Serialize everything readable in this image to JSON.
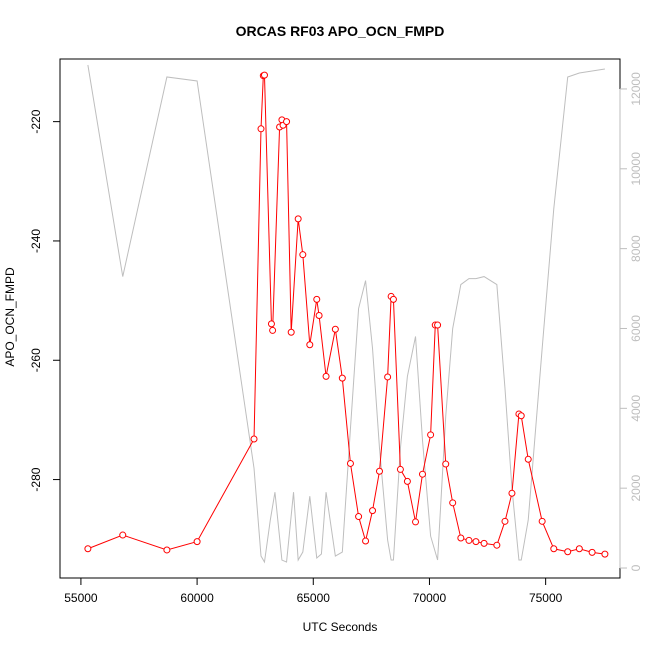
{
  "chart_data": {
    "type": "line",
    "title": "ORCAS RF03 APO_OCN_FMPD",
    "xlabel": "UTC Seconds",
    "ylabel": "APO_OCN_FMPD",
    "xlim": [
      54100,
      78200
    ],
    "ylim": [
      -296.5,
      -209.5
    ],
    "y2lim": [
      -250,
      12750
    ],
    "x_ticks": [
      55000,
      60000,
      65000,
      70000,
      75000
    ],
    "x_tick_labels": [
      "55000",
      "60000",
      "65000",
      "70000",
      "75000"
    ],
    "y_ticks": [
      -220,
      -240,
      -260,
      -280
    ],
    "y_tick_labels": [
      "-220",
      "-240",
      "-260",
      "-280"
    ],
    "y2_ticks": [
      0,
      2000,
      4000,
      6000,
      8000,
      10000,
      12000
    ],
    "y2_tick_labels": [
      "0",
      "2000",
      "4000",
      "6000",
      "8000",
      "10000",
      "12000"
    ],
    "colors": {
      "primary": "#ff0000",
      "secondary": "#bebebe",
      "axis": "#000000",
      "right_axis": "#bebebe"
    },
    "series": [
      {
        "axis": "left",
        "style": "line-markers",
        "marker": "open-circle",
        "color": "#ff0000",
        "x": [
          55300,
          56800,
          58700,
          60000,
          62450,
          62750,
          62850,
          62900,
          63200,
          63250,
          63550,
          63650,
          63700,
          63850,
          64050,
          64350,
          64550,
          64850,
          65150,
          65250,
          65550,
          65950,
          66250,
          66600,
          66950,
          67250,
          67550,
          67850,
          68200,
          68350,
          68450,
          68750,
          69050,
          69400,
          69700,
          70050,
          70250,
          70350,
          70700,
          71000,
          71350,
          71700,
          72000,
          72350,
          72900,
          73250,
          73550,
          73850,
          73950,
          74250,
          74850,
          75350,
          75950,
          76450,
          77000,
          77550
        ],
        "y": [
          -291.6,
          -289.3,
          -291.8,
          -290.4,
          -273.2,
          -221.2,
          -212.3,
          -212.2,
          -253.9,
          -255.0,
          -220.9,
          -219.7,
          -220.6,
          -220.0,
          -255.3,
          -236.3,
          -242.3,
          -257.4,
          -249.8,
          -252.5,
          -262.7,
          -254.8,
          -263.0,
          -277.3,
          -286.2,
          -290.3,
          -285.2,
          -278.6,
          -262.8,
          -249.3,
          -249.8,
          -278.3,
          -280.3,
          -287.1,
          -279.1,
          -272.5,
          -254.1,
          -254.1,
          -277.4,
          -283.9,
          -289.8,
          -290.2,
          -290.4,
          -290.7,
          -291.0,
          -287.0,
          -282.3,
          -269.0,
          -269.3,
          -276.6,
          -287.0,
          -291.6,
          -292.1,
          -291.6,
          -292.2,
          -292.5
        ]
      },
      {
        "axis": "right",
        "style": "line",
        "color": "#bebebe",
        "x": [
          55300,
          56800,
          58700,
          60000,
          62450,
          62750,
          62900,
          63150,
          63350,
          63650,
          63850,
          64150,
          64350,
          64550,
          64850,
          65150,
          65350,
          65550,
          65950,
          66250,
          66600,
          66950,
          67250,
          67550,
          67850,
          68200,
          68350,
          68450,
          68750,
          69050,
          69400,
          69700,
          70050,
          70350,
          70700,
          71000,
          71350,
          71700,
          72000,
          72350,
          72900,
          73250,
          73550,
          73850,
          73950,
          74250,
          74850,
          75350,
          75950,
          76450,
          77000,
          77550
        ],
        "y": [
          12600,
          7300,
          12300,
          12200,
          2500,
          300,
          150,
          1200,
          1900,
          200,
          150,
          1900,
          200,
          400,
          1800,
          250,
          350,
          1900,
          300,
          400,
          3500,
          6500,
          7200,
          5500,
          3000,
          700,
          200,
          200,
          3000,
          4800,
          5800,
          3200,
          800,
          200,
          3800,
          6000,
          7100,
          7250,
          7250,
          7300,
          7100,
          4500,
          2000,
          200,
          200,
          1200,
          5500,
          9000,
          12300,
          12400,
          12450,
          12500
        ]
      }
    ]
  }
}
